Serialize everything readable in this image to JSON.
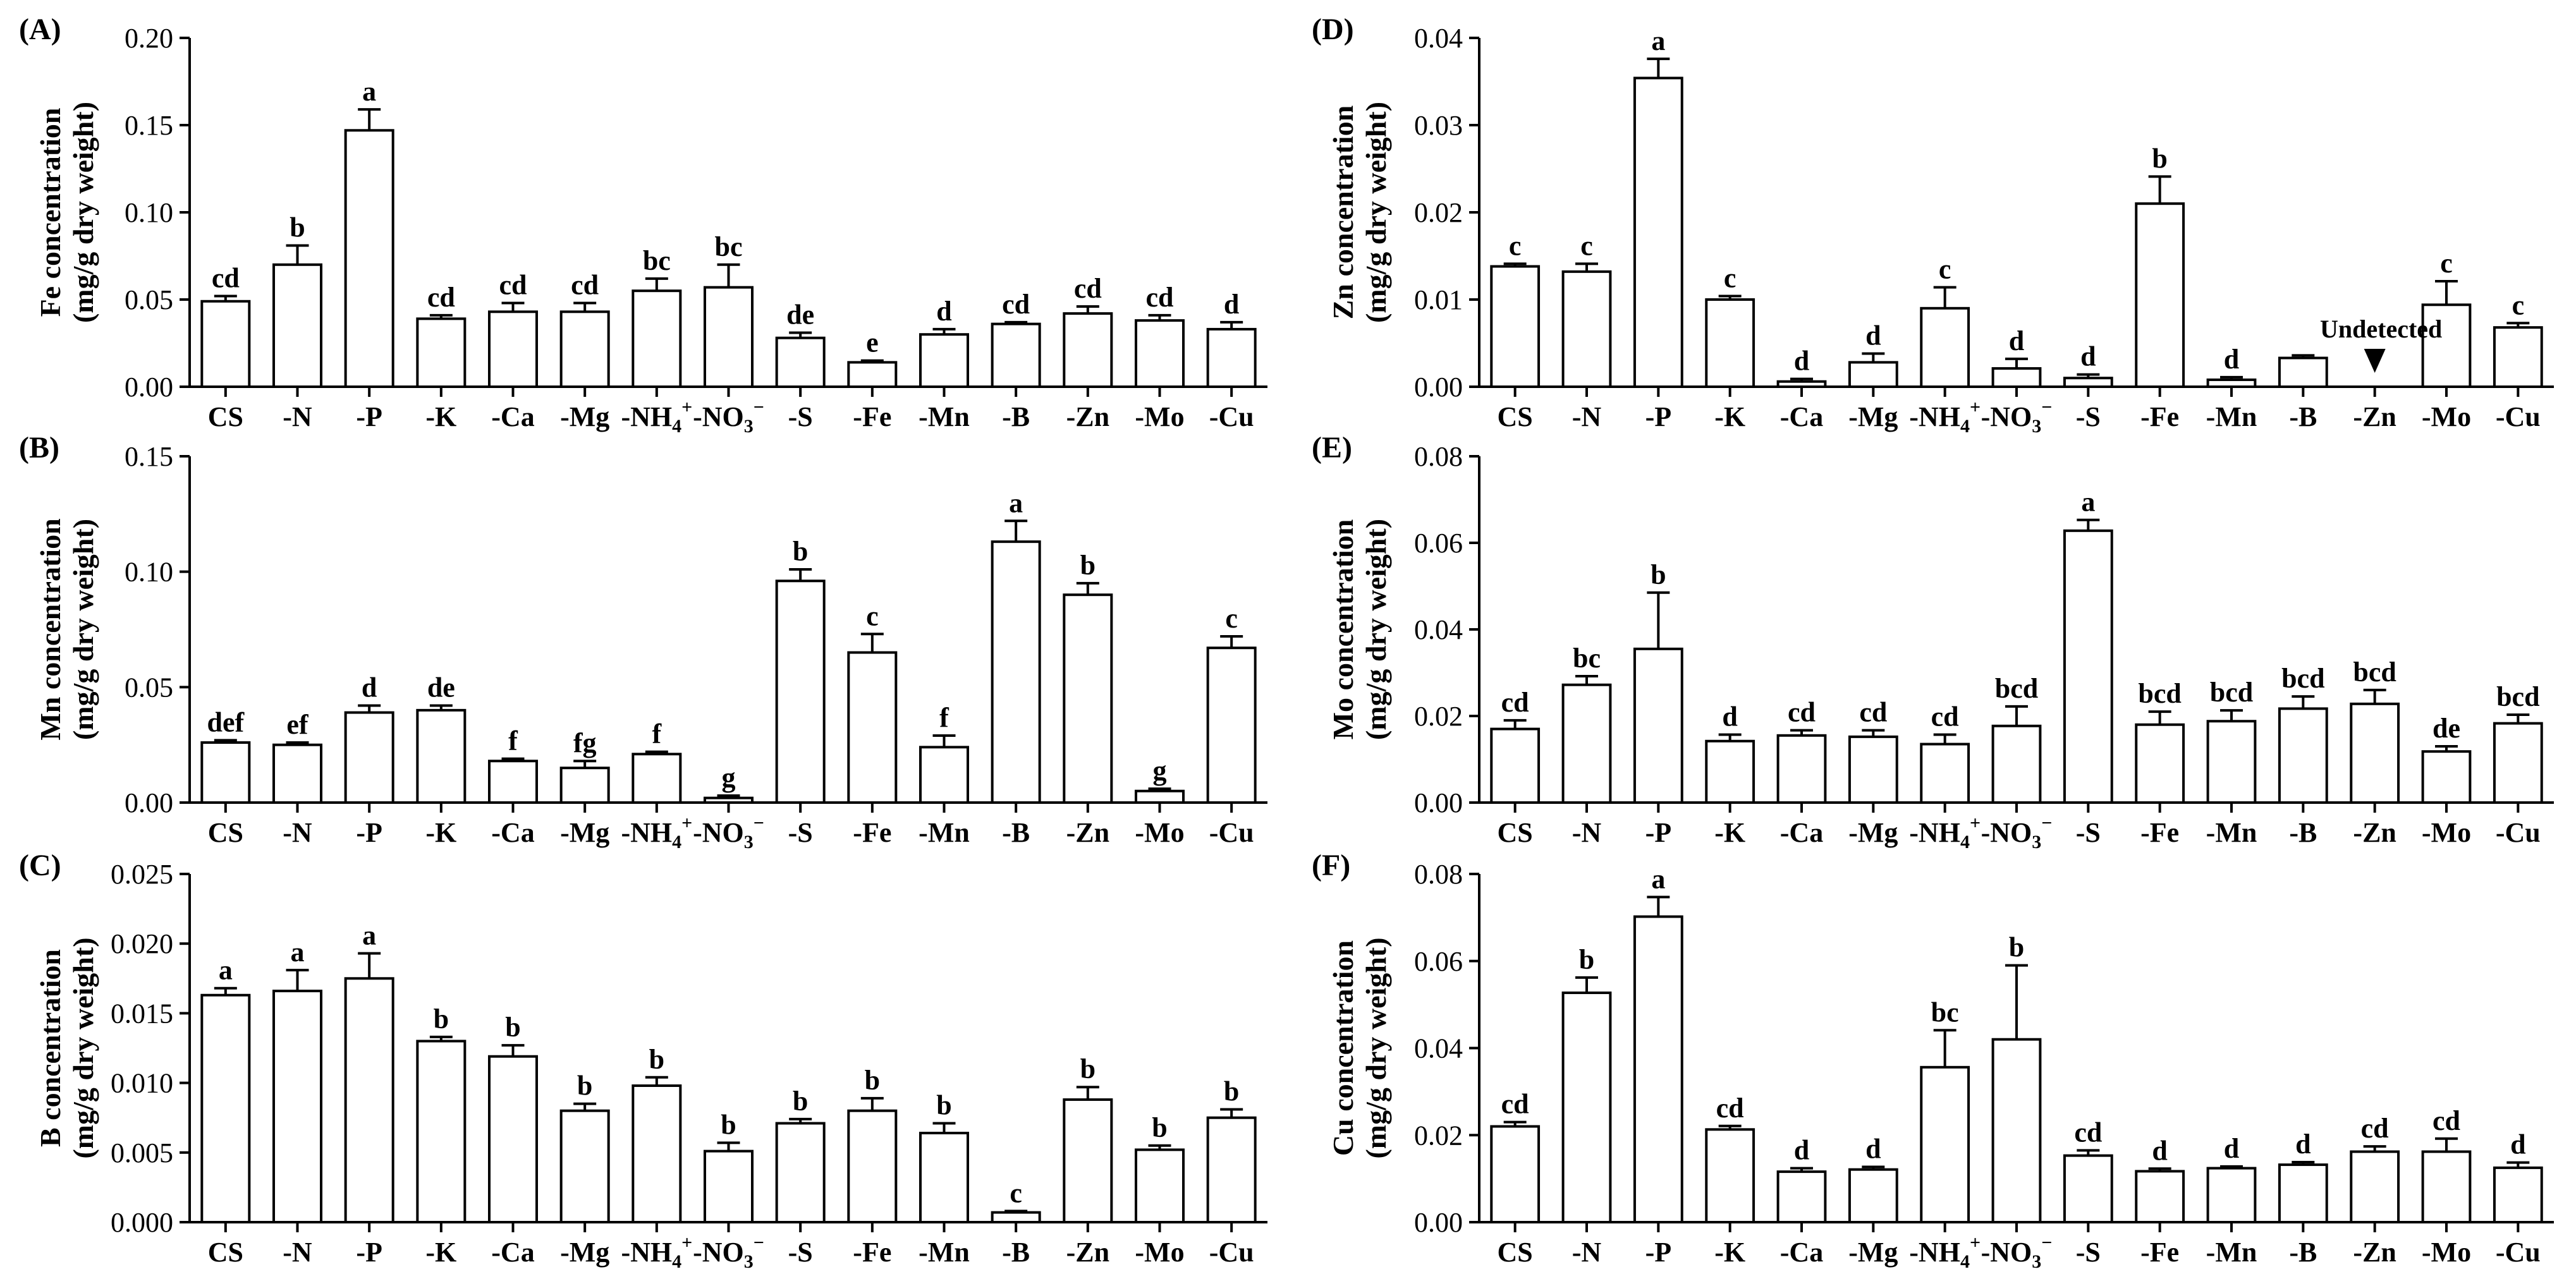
{
  "chart_data": [
    {
      "type": "bar",
      "panel": "(A)",
      "ylabel_lines": [
        "Fe concentration",
        "(mg/g dry weight)"
      ],
      "ylim": [
        0,
        0.2
      ],
      "yticks": [
        "0.00",
        "0.05",
        "0.10",
        "0.15",
        "0.20"
      ],
      "categories": [
        "CS",
        "-N",
        "-P",
        "-K",
        "-Ca",
        "-Mg",
        "-NH4+",
        "-NO3-",
        "-S",
        "-Fe",
        "-Mn",
        "-B",
        "-Zn",
        "-Mo",
        "-Cu"
      ],
      "values": [
        0.049,
        0.07,
        0.147,
        0.039,
        0.043,
        0.043,
        0.055,
        0.057,
        0.028,
        0.014,
        0.03,
        0.036,
        0.042,
        0.038,
        0.033
      ],
      "errors": [
        0.003,
        0.011,
        0.012,
        0.002,
        0.005,
        0.005,
        0.007,
        0.013,
        0.003,
        0.001,
        0.003,
        0.001,
        0.004,
        0.003,
        0.004
      ],
      "letters": [
        "cd",
        "b",
        "a",
        "cd",
        "cd",
        "cd",
        "bc",
        "bc",
        "de",
        "e",
        "d",
        "cd",
        "cd",
        "cd",
        "d"
      ]
    },
    {
      "type": "bar",
      "panel": "(B)",
      "ylabel_lines": [
        "Mn concentration",
        "(mg/g dry weight)"
      ],
      "ylim": [
        0,
        0.15
      ],
      "yticks": [
        "0.00",
        "0.05",
        "0.10",
        "0.15"
      ],
      "categories": [
        "CS",
        "-N",
        "-P",
        "-K",
        "-Ca",
        "-Mg",
        "-NH4+",
        "-NO3-",
        "-S",
        "-Fe",
        "-Mn",
        "-B",
        "-Zn",
        "-Mo",
        "-Cu"
      ],
      "values": [
        0.026,
        0.025,
        0.039,
        0.04,
        0.018,
        0.015,
        0.021,
        0.002,
        0.096,
        0.065,
        0.024,
        0.113,
        0.09,
        0.005,
        0.067
      ],
      "errors": [
        0.001,
        0.001,
        0.003,
        0.002,
        0.001,
        0.003,
        0.001,
        0.001,
        0.005,
        0.008,
        0.005,
        0.009,
        0.005,
        0.001,
        0.005
      ],
      "letters": [
        "def",
        "ef",
        "d",
        "de",
        "f",
        "fg",
        "f",
        "g",
        "b",
        "c",
        "f",
        "a",
        "b",
        "g",
        "c"
      ]
    },
    {
      "type": "bar",
      "panel": "(C)",
      "ylabel_lines": [
        "B concentration",
        "(mg/g dry weight)"
      ],
      "ylim": [
        0,
        0.025
      ],
      "yticks": [
        "0.000",
        "0.005",
        "0.010",
        "0.015",
        "0.020",
        "0.025"
      ],
      "categories": [
        "CS",
        "-N",
        "-P",
        "-K",
        "-Ca",
        "-Mg",
        "-NH4+",
        "-NO3-",
        "-S",
        "-Fe",
        "-Mn",
        "-B",
        "-Zn",
        "-Mo",
        "-Cu"
      ],
      "values": [
        0.0163,
        0.0166,
        0.0175,
        0.013,
        0.0119,
        0.008,
        0.0098,
        0.0051,
        0.0071,
        0.008,
        0.0064,
        0.0007,
        0.0088,
        0.0052,
        0.0075
      ],
      "errors": [
        0.0005,
        0.0015,
        0.0018,
        0.0003,
        0.0008,
        0.0005,
        0.0006,
        0.0006,
        0.0003,
        0.0009,
        0.0007,
        0.0001,
        0.0009,
        0.0003,
        0.0006
      ],
      "letters": [
        "a",
        "a",
        "a",
        "b",
        "b",
        "b",
        "b",
        "b",
        "b",
        "b",
        "b",
        "c",
        "b",
        "b",
        "b"
      ]
    },
    {
      "type": "bar",
      "panel": "(D)",
      "ylabel_lines": [
        "Zn concentration",
        "(mg/g dry weight)"
      ],
      "ylim": [
        0,
        0.04
      ],
      "yticks": [
        "0.00",
        "0.01",
        "0.02",
        "0.03",
        "0.04"
      ],
      "categories": [
        "CS",
        "-N",
        "-P",
        "-K",
        "-Ca",
        "-Mg",
        "-NH4+",
        "-NO3-",
        "-S",
        "-Fe",
        "-Mn",
        "-B",
        "-Zn",
        "-Mo",
        "-Cu"
      ],
      "values": [
        0.0138,
        0.0132,
        0.0354,
        0.01,
        0.0006,
        0.0028,
        0.009,
        0.0021,
        0.001,
        0.021,
        0.0008,
        0.0033,
        0,
        0.0094,
        0.0068
      ],
      "errors": [
        0.0003,
        0.0009,
        0.0022,
        0.0004,
        0.0003,
        0.001,
        0.0024,
        0.0011,
        0.0004,
        0.0031,
        0.0003,
        0.0003,
        0,
        0.0027,
        0.0005
      ],
      "letters": [
        "c",
        "c",
        "a",
        "c",
        "d",
        "d",
        "c",
        "d",
        "d",
        "b",
        "d",
        "",
        "",
        "c",
        "c"
      ],
      "annotation": "Undetected",
      "annotation_category": "-Zn"
    },
    {
      "type": "bar",
      "panel": "(E)",
      "ylabel_lines": [
        "Mo concentration",
        "(mg/g dry weight)"
      ],
      "ylim": [
        0,
        0.08
      ],
      "yticks": [
        "0.00",
        "0.02",
        "0.04",
        "0.06",
        "0.08"
      ],
      "categories": [
        "CS",
        "-N",
        "-P",
        "-K",
        "-Ca",
        "-Mg",
        "-NH4+",
        "-NO3-",
        "-S",
        "-Fe",
        "-Mn",
        "-B",
        "-Zn",
        "-Mo",
        "-Cu"
      ],
      "values": [
        0.017,
        0.0272,
        0.0355,
        0.0142,
        0.0155,
        0.0152,
        0.0135,
        0.0177,
        0.0628,
        0.018,
        0.0188,
        0.0217,
        0.0228,
        0.0118,
        0.0183
      ],
      "errors": [
        0.002,
        0.002,
        0.013,
        0.0015,
        0.0012,
        0.0015,
        0.0022,
        0.0045,
        0.0025,
        0.003,
        0.0025,
        0.0028,
        0.0032,
        0.0012,
        0.002
      ],
      "letters": [
        "cd",
        "bc",
        "b",
        "d",
        "cd",
        "cd",
        "cd",
        "bcd",
        "a",
        "bcd",
        "bcd",
        "bcd",
        "bcd",
        "de",
        "bcd"
      ]
    },
    {
      "type": "bar",
      "panel": "(F)",
      "ylabel_lines": [
        "Cu concentration",
        "(mg/g dry weight)"
      ],
      "ylim": [
        0,
        0.08
      ],
      "yticks": [
        "0.00",
        "0.02",
        "0.04",
        "0.06",
        "0.08"
      ],
      "categories": [
        "CS",
        "-N",
        "-P",
        "-K",
        "-Ca",
        "-Mg",
        "-NH4+",
        "-NO3-",
        "-S",
        "-Fe",
        "-Mn",
        "-B",
        "-Zn",
        "-Mo",
        "-Cu"
      ],
      "values": [
        0.022,
        0.0527,
        0.0702,
        0.0213,
        0.0116,
        0.0121,
        0.0356,
        0.042,
        0.0153,
        0.0117,
        0.0124,
        0.0132,
        0.0162,
        0.0162,
        0.0125
      ],
      "errors": [
        0.001,
        0.0035,
        0.0045,
        0.0008,
        0.0008,
        0.0006,
        0.0085,
        0.017,
        0.0012,
        0.0006,
        0.0004,
        0.0006,
        0.0012,
        0.003,
        0.0012
      ],
      "letters": [
        "cd",
        "b",
        "a",
        "cd",
        "d",
        "d",
        "bc",
        "b",
        "cd",
        "d",
        "d",
        "d",
        "cd",
        "cd",
        "d"
      ]
    }
  ]
}
